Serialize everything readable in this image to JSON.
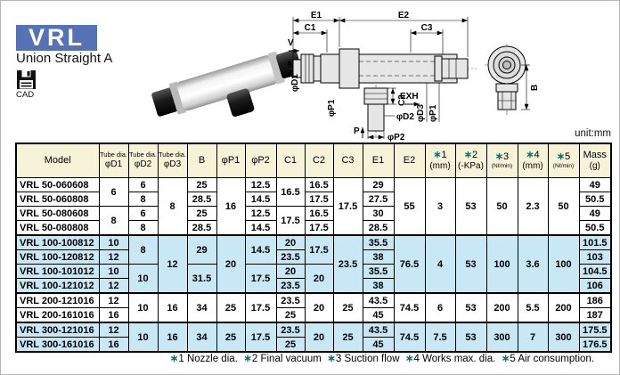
{
  "header": {
    "logo": "VRL",
    "subtitle": "Union Straight A",
    "cad_label": "CAD"
  },
  "page": {
    "unit_label": "unit:mm"
  },
  "diagram": {
    "labels": {
      "v": "V",
      "e1": "E1",
      "e2": "E2",
      "c1": "C1",
      "c3": "C3",
      "phi_d1": "φD1",
      "phi_p1_left": "φP1",
      "c2": "C2",
      "phi_d2": "φD2",
      "p": "P",
      "phi_p2": "φP2",
      "exh": "EXH",
      "phi_d3": "φD3",
      "phi_p1_right": "φP1",
      "b": "B"
    }
  },
  "table": {
    "headers": [
      {
        "key": "model",
        "label": "Model"
      },
      {
        "key": "d1",
        "top": "Tube dia.",
        "bottom": "φD1",
        "top_small": true
      },
      {
        "key": "d2",
        "top": "Tube dia.",
        "bottom": "φD2",
        "top_small": true
      },
      {
        "key": "d3",
        "top": "Tube dia.",
        "bottom": "φD3",
        "top_small": true
      },
      {
        "key": "b",
        "label": "B"
      },
      {
        "key": "p1",
        "label": "φP1"
      },
      {
        "key": "p2",
        "label": "φP2"
      },
      {
        "key": "c1",
        "label": "C1"
      },
      {
        "key": "c2",
        "label": "C2"
      },
      {
        "key": "c3",
        "label": "C3"
      },
      {
        "key": "e1",
        "label": "E1"
      },
      {
        "key": "e2",
        "label": "E2"
      },
      {
        "key": "note1",
        "top": "∗1",
        "bottom": "(mm)"
      },
      {
        "key": "note2",
        "top": "∗2",
        "bottom": "(-KPa)"
      },
      {
        "key": "note3",
        "top": "∗3",
        "bottom": "(Nℓ/min)",
        "bottom_small": true
      },
      {
        "key": "note4",
        "top": "∗4",
        "bottom": "(mm)"
      },
      {
        "key": "note5",
        "top": "∗5",
        "bottom": "(Nℓ/min)",
        "bottom_small": true
      },
      {
        "key": "mass",
        "top": "Mass",
        "bottom": "(g)"
      }
    ],
    "rows": [
      {
        "model": "VRL 50-060608",
        "blue": false,
        "cells": [
          {
            "v": "6",
            "rs": 2
          },
          {
            "v": "6"
          },
          {
            "v": "8",
            "rs": 4
          },
          {
            "v": "25"
          },
          {
            "v": "16",
            "rs": 4
          },
          {
            "v": "12.5"
          },
          {
            "v": "16.5",
            "rs": 2
          },
          {
            "v": "16.5"
          },
          {
            "v": "17.5",
            "rs": 4
          },
          {
            "v": "29"
          },
          {
            "v": "55",
            "rs": 4
          },
          {
            "v": "3",
            "rs": 4
          },
          {
            "v": "53",
            "rs": 4
          },
          {
            "v": "50",
            "rs": 4
          },
          {
            "v": "2.3",
            "rs": 4
          },
          {
            "v": "50",
            "rs": 4
          },
          {
            "v": "49"
          }
        ]
      },
      {
        "model": "VRL 50-060808",
        "blue": false,
        "cells": [
          {
            "v": "8"
          },
          {
            "v": "28.5"
          },
          {
            "v": "14.5"
          },
          {
            "v": "17.5"
          },
          {
            "v": "27.5"
          },
          {
            "v": "50.5"
          }
        ]
      },
      {
        "model": "VRL 50-080608",
        "blue": false,
        "cells": [
          {
            "v": "8",
            "rs": 2
          },
          {
            "v": "6"
          },
          {
            "v": "25"
          },
          {
            "v": "12.5"
          },
          {
            "v": "17.5",
            "rs": 2
          },
          {
            "v": "16.5"
          },
          {
            "v": "30"
          },
          {
            "v": "49"
          }
        ]
      },
      {
        "model": "VRL 50-080808",
        "blue": false,
        "cells": [
          {
            "v": "8"
          },
          {
            "v": "28.5"
          },
          {
            "v": "14.5"
          },
          {
            "v": "17.5"
          },
          {
            "v": "28.5"
          },
          {
            "v": "50.5"
          }
        ]
      },
      {
        "model": "VRL 100-100812",
        "blue": true,
        "group_start": true,
        "cells": [
          {
            "v": "10"
          },
          {
            "v": "8",
            "rs": 2
          },
          {
            "v": "12",
            "rs": 4
          },
          {
            "v": "29",
            "rs": 2
          },
          {
            "v": "20",
            "rs": 4
          },
          {
            "v": "14.5",
            "rs": 2
          },
          {
            "v": "20"
          },
          {
            "v": "17.5",
            "rs": 2
          },
          {
            "v": "23.5",
            "rs": 4
          },
          {
            "v": "35.5"
          },
          {
            "v": "76.5",
            "rs": 4
          },
          {
            "v": "4",
            "rs": 4
          },
          {
            "v": "53",
            "rs": 4
          },
          {
            "v": "100",
            "rs": 4
          },
          {
            "v": "3.6",
            "rs": 4
          },
          {
            "v": "100",
            "rs": 4
          },
          {
            "v": "101.5"
          }
        ]
      },
      {
        "model": "VRL 100-120812",
        "blue": true,
        "cells": [
          {
            "v": "12"
          },
          {
            "v": "23.5"
          },
          {
            "v": "38"
          },
          {
            "v": "103"
          }
        ]
      },
      {
        "model": "VRL 100-101012",
        "blue": true,
        "cells": [
          {
            "v": "10"
          },
          {
            "v": "10",
            "rs": 2
          },
          {
            "v": "31.5",
            "rs": 2
          },
          {
            "v": "17.5",
            "rs": 2
          },
          {
            "v": "20"
          },
          {
            "v": "20",
            "rs": 2
          },
          {
            "v": "35.5"
          },
          {
            "v": "104.5"
          }
        ]
      },
      {
        "model": "VRL 100-121012",
        "blue": true,
        "cells": [
          {
            "v": "12"
          },
          {
            "v": "23.5"
          },
          {
            "v": "38"
          },
          {
            "v": "106"
          }
        ]
      },
      {
        "model": "VRL 200-121016",
        "blue": false,
        "group_start": true,
        "cells": [
          {
            "v": "12"
          },
          {
            "v": "10",
            "rs": 2
          },
          {
            "v": "16",
            "rs": 2
          },
          {
            "v": "34",
            "rs": 2
          },
          {
            "v": "25",
            "rs": 2
          },
          {
            "v": "17.5",
            "rs": 2
          },
          {
            "v": "23.5"
          },
          {
            "v": "20",
            "rs": 2
          },
          {
            "v": "25",
            "rs": 2
          },
          {
            "v": "43.5"
          },
          {
            "v": "74.5",
            "rs": 2
          },
          {
            "v": "6",
            "rs": 2
          },
          {
            "v": "53",
            "rs": 2
          },
          {
            "v": "200",
            "rs": 2
          },
          {
            "v": "5.5",
            "rs": 2
          },
          {
            "v": "200",
            "rs": 2
          },
          {
            "v": "186"
          }
        ]
      },
      {
        "model": "VRL 200-161016",
        "blue": false,
        "cells": [
          {
            "v": "16"
          },
          {
            "v": "25"
          },
          {
            "v": "45"
          },
          {
            "v": "187"
          }
        ]
      },
      {
        "model": "VRL 300-121016",
        "blue": true,
        "group_start": true,
        "cells": [
          {
            "v": "12"
          },
          {
            "v": "10",
            "rs": 2
          },
          {
            "v": "16",
            "rs": 2
          },
          {
            "v": "34",
            "rs": 2
          },
          {
            "v": "25",
            "rs": 2
          },
          {
            "v": "17.5",
            "rs": 2
          },
          {
            "v": "23.5"
          },
          {
            "v": "20",
            "rs": 2
          },
          {
            "v": "25",
            "rs": 2
          },
          {
            "v": "43.5"
          },
          {
            "v": "74.5",
            "rs": 2
          },
          {
            "v": "7.5",
            "rs": 2
          },
          {
            "v": "53",
            "rs": 2
          },
          {
            "v": "300",
            "rs": 2
          },
          {
            "v": "7",
            "rs": 2
          },
          {
            "v": "300",
            "rs": 2
          },
          {
            "v": "175.5"
          }
        ]
      },
      {
        "model": "VRL 300-161016",
        "blue": true,
        "cells": [
          {
            "v": "16"
          },
          {
            "v": "25"
          },
          {
            "v": "45"
          },
          {
            "v": "176.5"
          }
        ]
      }
    ],
    "footnote": "∗1 Nozzle dia.  ∗2 Final vacuum  ∗3 Suction flow  ∗4 Works max. dia.  ∗5 Air consumption."
  },
  "colors": {
    "logo_blue": "#5572b6",
    "header_bg": "#f7f3d9",
    "row_blue": "#c9e8f5",
    "accent_teal": "#156e63"
  }
}
